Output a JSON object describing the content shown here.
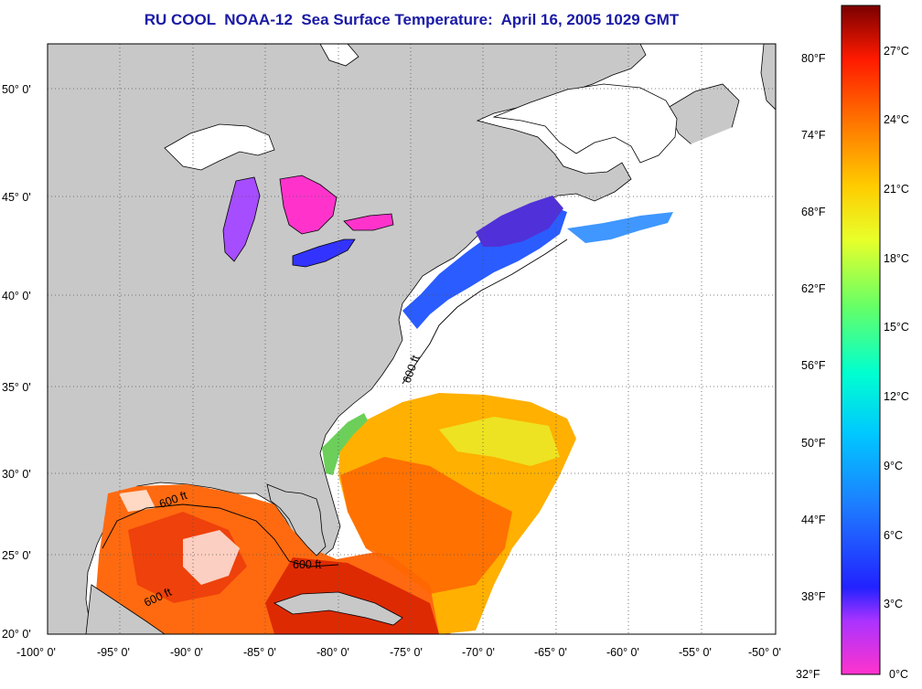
{
  "title": "RU COOL  NOAA-12  Sea Surface Temperature:  April 16, 2005 1029 GMT",
  "map": {
    "lon_labels": [
      "-100° 0'",
      "-95° 0'",
      "-90° 0'",
      "-85° 0'",
      "-80° 0'",
      "-75° 0'",
      "-70° 0'",
      "-65° 0'",
      "-60° 0'",
      "-55° 0'",
      "-50° 0'"
    ],
    "lat_labels": [
      "50° 0'",
      "45° 0'",
      "40° 0'",
      "35° 0'",
      "30° 0'",
      "25° 0'",
      "20° 0'"
    ],
    "isobath_label": "600 ft",
    "colors": {
      "land": "#c8c8c8",
      "cloud": "#ffffff",
      "grid": "#555555"
    }
  },
  "colorbar": {
    "fahrenheit_labels": [
      "80°F",
      "74°F",
      "68°F",
      "62°F",
      "56°F",
      "50°F",
      "44°F",
      "38°F",
      "32°F"
    ],
    "celsius_labels": [
      "27°C",
      "24°C",
      "21°C",
      "18°C",
      "15°C",
      "12°C",
      "9°C",
      "6°C",
      "3°C",
      "0°C"
    ]
  }
}
